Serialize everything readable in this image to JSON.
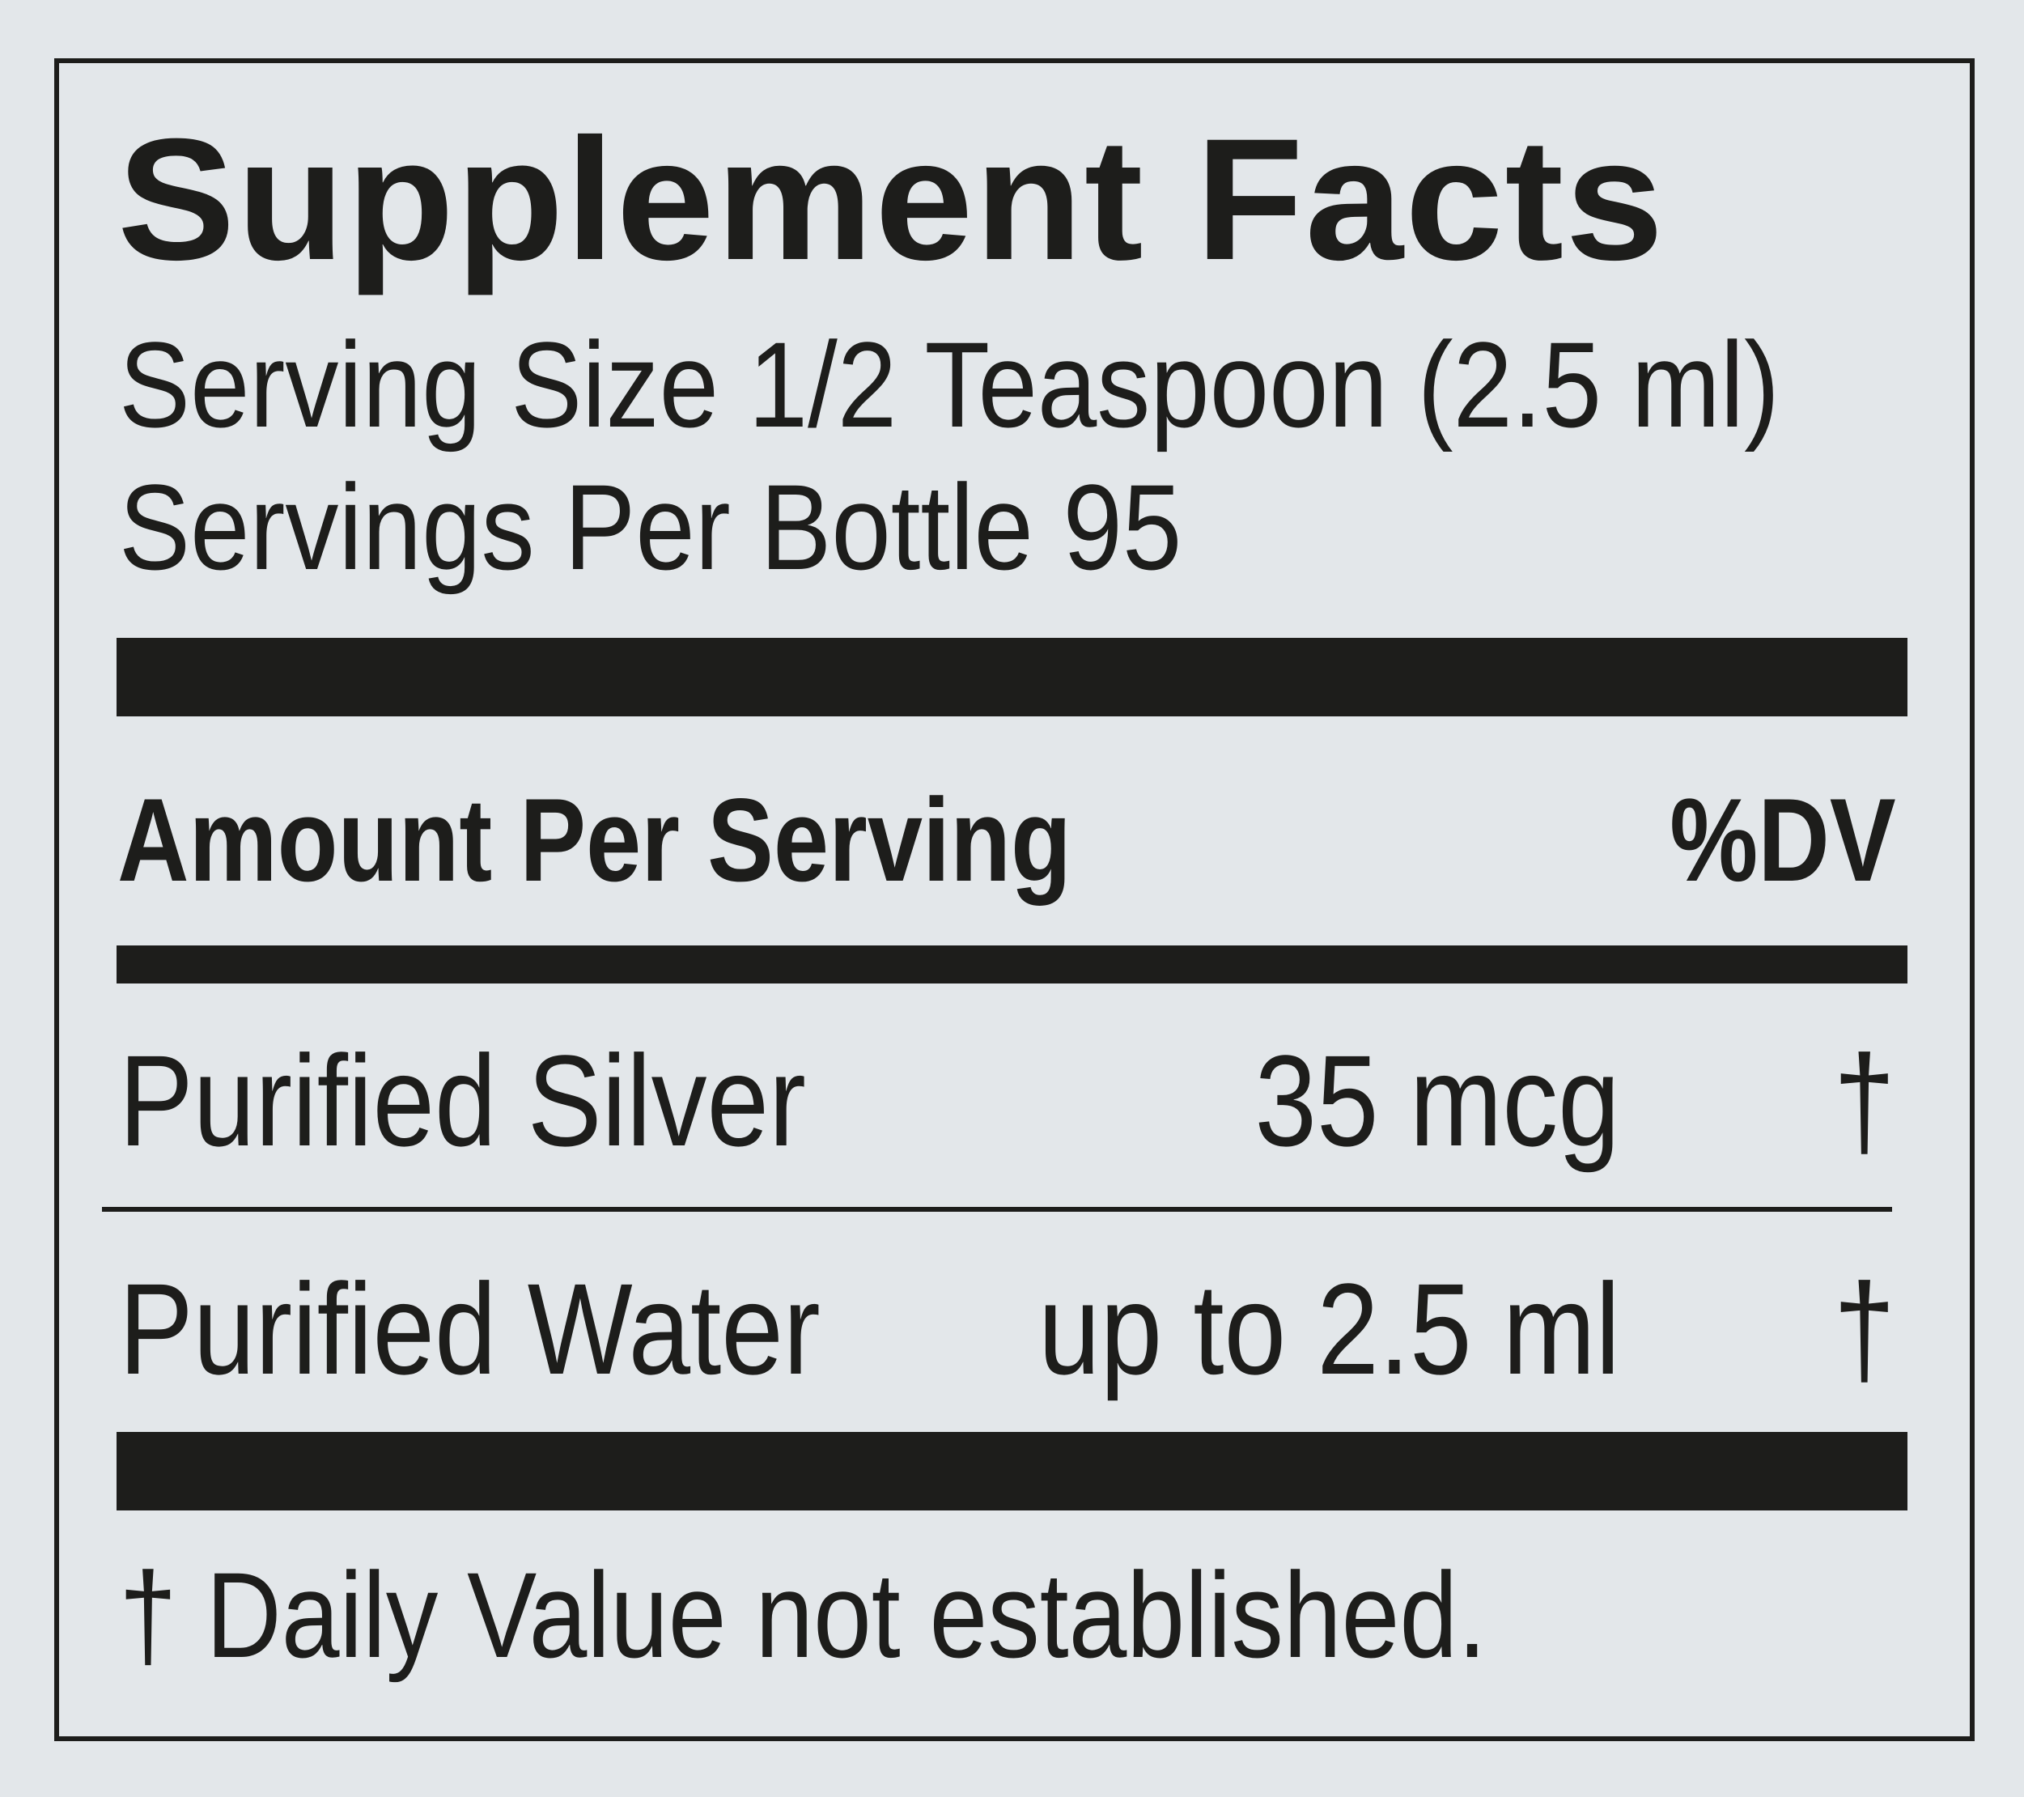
{
  "title": "Supplement Facts",
  "serving_size": "Serving Size 1/2 Teaspoon (2.5 ml)",
  "servings_per_container": "Servings Per Bottle 95",
  "header": {
    "amount_label": "Amount Per Serving",
    "dv_label": "%DV"
  },
  "rows": [
    {
      "name": "Purified Silver",
      "amount": "35 mcg",
      "dv": "†"
    },
    {
      "name": "Purified Water",
      "amount": "up to 2.5 ml",
      "dv": "†"
    }
  ],
  "footnote": "† Daily Value not established.",
  "colors": {
    "background": "#e3e7ea",
    "ink": "#1d1d1b"
  }
}
